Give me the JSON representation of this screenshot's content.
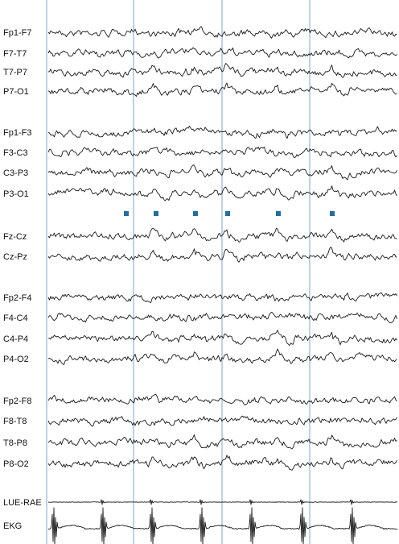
{
  "chart_data": {
    "type": "line",
    "title": "",
    "colors": {
      "trace": "#1a1a1a",
      "epoch_line": "#8fb3de",
      "marker": "#1f6ea5",
      "background": "#ffffff"
    },
    "epoch_markers": 4,
    "event_markers": 6,
    "groups": [
      {
        "channels": [
          "Fp1-F7",
          "F7-T7",
          "T7-P7",
          "P7-O1"
        ]
      },
      {
        "channels": [
          "Fp1-F3",
          "F3-C3",
          "C3-P3",
          "P3-O1"
        ]
      },
      {
        "channels": [
          "Fz-Cz",
          "Cz-Pz"
        ]
      },
      {
        "channels": [
          "Fp2-F4",
          "F4-C4",
          "C4-P4",
          "P4-O2"
        ]
      },
      {
        "channels": [
          "Fp2-F8",
          "F8-T8",
          "T8-P8",
          "P8-O2"
        ]
      },
      {
        "channels": [
          "LUE-RAE",
          "EKG"
        ]
      }
    ]
  }
}
